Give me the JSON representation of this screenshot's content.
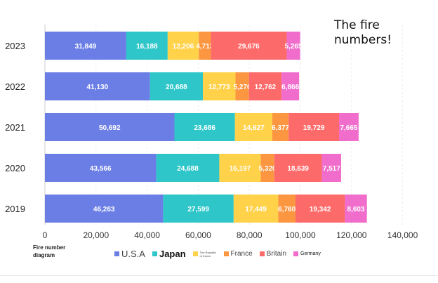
{
  "chart_data": {
    "type": "bar",
    "orientation": "horizontal",
    "stacked": true,
    "title": "The fire numbers!",
    "xlabel": "Fire number diagram",
    "ylabel": "",
    "xlim": [
      0,
      140000
    ],
    "x_ticks": [
      "0",
      "20,000",
      "40,000",
      "60,000",
      "80,000",
      "100,000",
      "120,000",
      "140,000"
    ],
    "x_tick_values": [
      0,
      20000,
      40000,
      60000,
      80000,
      100000,
      120000,
      140000
    ],
    "categories": [
      "2023",
      "2022",
      "2021",
      "2020",
      "2019"
    ],
    "series": [
      {
        "name": "U.S.A",
        "color": "#6a7ee6",
        "values": [
          31849,
          41130,
          50692,
          43566,
          46263
        ],
        "labels": [
          "31,849",
          "41,130",
          "50,692",
          "43,566",
          "46,263"
        ]
      },
      {
        "name": "Japan",
        "color": "#2ec6c8",
        "values": [
          16188,
          20688,
          23686,
          24688,
          27599
        ],
        "labels": [
          "16,188",
          "20,688",
          "23,686",
          "24,688",
          "27,599"
        ]
      },
      {
        "name": "The Republic of Korea",
        "color": "#ffd24a",
        "values": [
          12206,
          12773,
          14627,
          16197,
          17449
        ],
        "labels": [
          "12,206",
          "12,773",
          "14,627",
          "16,197",
          "17,449"
        ]
      },
      {
        "name": "France",
        "color": "#fd9640",
        "values": [
          4713,
          5276,
          6377,
          5320,
          6760
        ],
        "labels": [
          "4,713",
          "5,276",
          "6,377",
          "5,320",
          "6,760"
        ]
      },
      {
        "name": "Britain",
        "color": "#fd6a6a",
        "values": [
          29676,
          12762,
          19729,
          18639,
          19342
        ],
        "labels": [
          "29,676",
          "12,762",
          "19,729",
          "18,639",
          "19,342"
        ]
      },
      {
        "name": "Germany",
        "color": "#f06dcc",
        "values": [
          5265,
          6866,
          7665,
          7517,
          8603
        ],
        "labels": [
          "5,265",
          "6,866",
          "7,665",
          "7,517",
          "8,603"
        ]
      }
    ],
    "legend_position": "bottom",
    "grid": true
  }
}
